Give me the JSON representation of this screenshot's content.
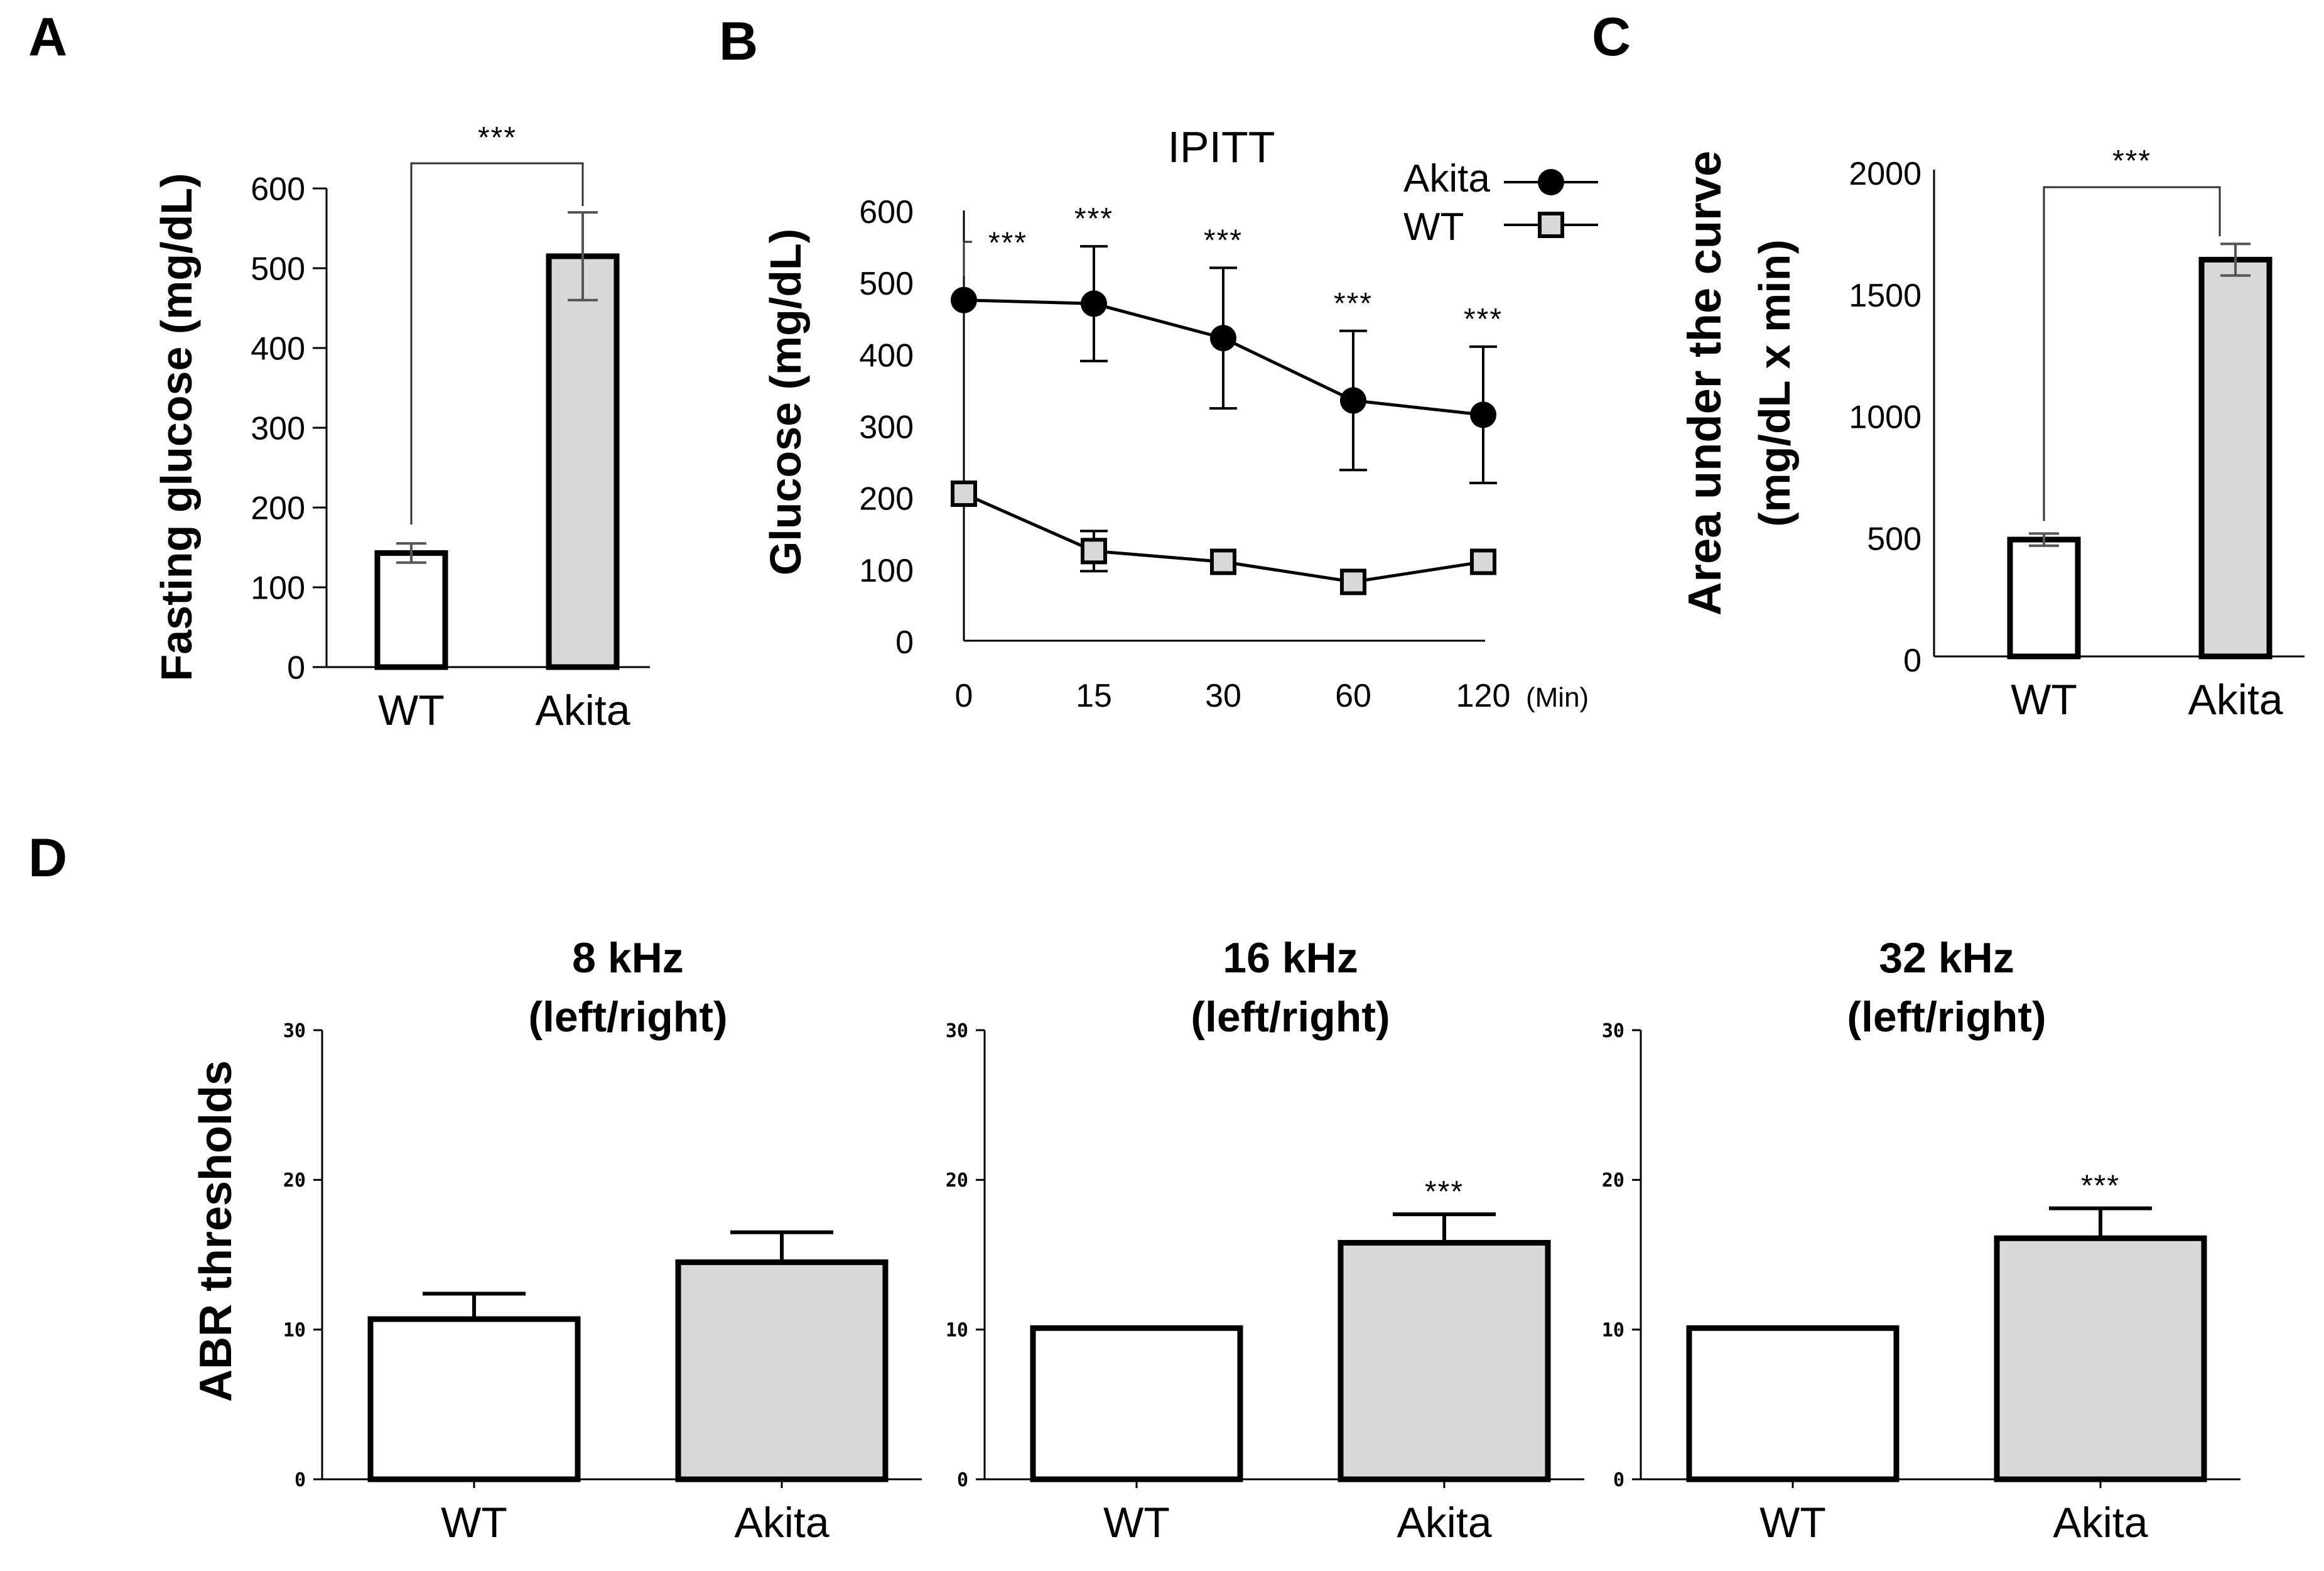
{
  "colors": {
    "wt_fill": "#ffffff",
    "akita_fill": "#d8d8d8",
    "axis": "#000000",
    "error_bar": "#555555"
  },
  "chart_data": [
    {
      "panel": "A",
      "type": "bar",
      "ylabel": "Fasting glucose (mg/dL)",
      "categories": [
        "WT",
        "Akita"
      ],
      "values": [
        143,
        515
      ],
      "errors": [
        12,
        55
      ],
      "ylim": [
        0,
        600
      ],
      "yticks": [
        "0",
        "100",
        "200",
        "300",
        "400",
        "500",
        "600"
      ],
      "significance": "***"
    },
    {
      "panel": "B",
      "type": "line",
      "title": "IPITT",
      "ylabel": "Glucose (mg/dL)",
      "x": [
        "0",
        "15",
        "30",
        "60",
        "120"
      ],
      "x_unit": "(Min)",
      "ylim": [
        0,
        600
      ],
      "yticks": [
        "0",
        "100",
        "200",
        "300",
        "400",
        "500",
        "600"
      ],
      "series": [
        {
          "name": "Akita",
          "marker": "filled-circle",
          "values": [
            475,
            470,
            422,
            335,
            315
          ],
          "errors": [
            0,
            80,
            98,
            97,
            95
          ],
          "significance": [
            "***",
            "***",
            "***",
            "***",
            "***"
          ]
        },
        {
          "name": "WT",
          "marker": "open-square",
          "values": [
            205,
            125,
            110,
            82,
            110
          ],
          "errors": [
            0,
            28,
            0,
            0,
            0
          ]
        }
      ]
    },
    {
      "panel": "C",
      "type": "bar",
      "ylabel_line1": "Area under the curve",
      "ylabel_line2": "(mg/dL x min)",
      "categories": [
        "WT",
        "Akita"
      ],
      "values": [
        480,
        1630
      ],
      "errors": [
        25,
        65
      ],
      "ylim": [
        0,
        2000
      ],
      "yticks": [
        "0",
        "500",
        "1000",
        "1500",
        "2000"
      ],
      "significance": "***"
    },
    {
      "panel": "D",
      "type": "bar",
      "ylabel": "ABR thresholds",
      "subplots": [
        {
          "title_line1": "8 kHz",
          "title_line2": "(left/right)",
          "categories": [
            "WT",
            "Akita"
          ],
          "values": [
            10.7,
            14.5
          ],
          "errors": [
            1.7,
            2.0
          ],
          "ylim": [
            0,
            30
          ],
          "yticks": [
            "0",
            "10",
            "20",
            "30"
          ],
          "significance": ""
        },
        {
          "title_line1": "16 kHz",
          "title_line2": "(left/right)",
          "categories": [
            "WT",
            "Akita"
          ],
          "values": [
            10.1,
            15.8
          ],
          "errors": [
            0,
            1.9
          ],
          "ylim": [
            0,
            30
          ],
          "yticks": [
            "0",
            "10",
            "20",
            "30"
          ],
          "significance": "***"
        },
        {
          "title_line1": "32 kHz",
          "title_line2": "(left/right)",
          "categories": [
            "WT",
            "Akita"
          ],
          "values": [
            10.1,
            16.1
          ],
          "errors": [
            0,
            2.0
          ],
          "ylim": [
            0,
            30
          ],
          "yticks": [
            "0",
            "10",
            "20",
            "30"
          ],
          "significance": "***"
        }
      ]
    }
  ]
}
